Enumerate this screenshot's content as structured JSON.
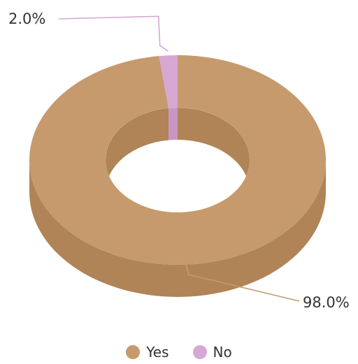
{
  "chart_data": {
    "type": "pie",
    "variant": "3d-donut",
    "title": "",
    "categories": [
      "Yes",
      "No"
    ],
    "values": [
      98.0,
      2.0
    ],
    "data_labels": [
      "98.0%",
      "2.0%"
    ],
    "colors": {
      "Yes": {
        "top": "#C69A6D",
        "side": "#B08457"
      },
      "No": {
        "top": "#D6A8D3",
        "side": "#C895C4"
      }
    },
    "legend": {
      "position": "bottom",
      "items": [
        {
          "label": "Yes",
          "color": "#C69A6D"
        },
        {
          "label": "No",
          "color": "#D6A8D3"
        }
      ]
    }
  }
}
